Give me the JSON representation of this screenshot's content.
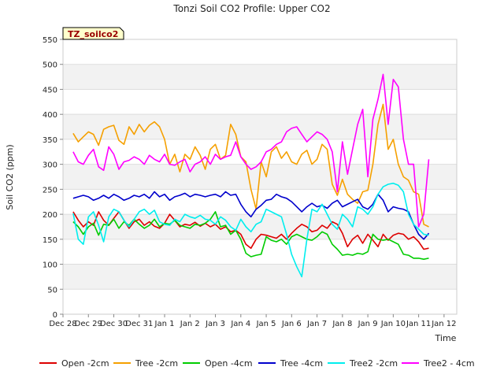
{
  "chart_data": {
    "type": "line",
    "title": "Tonzi Soil CO2 Profile: Upper CO2",
    "xlabel": "Time",
    "ylabel": "Soil CO2 (ppm)",
    "badge": "TZ_soilco2",
    "ylim": [
      0,
      550
    ],
    "yticks": [
      0,
      50,
      100,
      150,
      200,
      250,
      300,
      350,
      400,
      450,
      500,
      550
    ],
    "xlim": [
      0,
      15.5
    ],
    "xticks": [
      {
        "pos": 0,
        "label": "Dec 28"
      },
      {
        "pos": 1,
        "label": "Dec 29"
      },
      {
        "pos": 2,
        "label": "Dec 30"
      },
      {
        "pos": 3,
        "label": "Dec 31"
      },
      {
        "pos": 4,
        "label": "Jan 1"
      },
      {
        "pos": 5,
        "label": "Jan 2"
      },
      {
        "pos": 6,
        "label": "Jan 3"
      },
      {
        "pos": 7,
        "label": "Jan 4"
      },
      {
        "pos": 8,
        "label": "Jan 5"
      },
      {
        "pos": 9,
        "label": "Jan 6"
      },
      {
        "pos": 10,
        "label": "Jan 7"
      },
      {
        "pos": 11,
        "label": "Jan 8"
      },
      {
        "pos": 12,
        "label": "Jan 9"
      },
      {
        "pos": 13,
        "label": "Jan 10"
      },
      {
        "pos": 14,
        "label": "Jan 11"
      },
      {
        "pos": 15,
        "label": "Jan 12"
      }
    ],
    "x": [
      0.4,
      0.6,
      0.8,
      1.0,
      1.2,
      1.4,
      1.6,
      1.8,
      2.0,
      2.2,
      2.4,
      2.6,
      2.8,
      3.0,
      3.2,
      3.4,
      3.6,
      3.8,
      4.0,
      4.2,
      4.4,
      4.6,
      4.8,
      5.0,
      5.2,
      5.4,
      5.6,
      5.8,
      6.0,
      6.2,
      6.4,
      6.6,
      6.8,
      7.0,
      7.2,
      7.4,
      7.6,
      7.8,
      8.0,
      8.2,
      8.4,
      8.6,
      8.8,
      9.0,
      9.2,
      9.4,
      9.6,
      9.8,
      10.0,
      10.2,
      10.4,
      10.6,
      10.8,
      11.0,
      11.2,
      11.4,
      11.6,
      11.8,
      12.0,
      12.2,
      12.4,
      12.6,
      12.8,
      13.0,
      13.2,
      13.4,
      13.6,
      13.8,
      14.0,
      14.2,
      14.4
    ],
    "series": [
      {
        "name": "Open -2cm",
        "color": "#dd0000",
        "values": [
          205,
          188,
          175,
          185,
          178,
          205,
          188,
          178,
          192,
          205,
          188,
          172,
          185,
          190,
          178,
          185,
          176,
          172,
          182,
          200,
          188,
          175,
          180,
          178,
          184,
          176,
          182,
          175,
          180,
          170,
          175,
          165,
          168,
          160,
          140,
          132,
          150,
          160,
          158,
          155,
          152,
          160,
          150,
          162,
          172,
          180,
          175,
          165,
          168,
          178,
          172,
          185,
          180,
          162,
          135,
          150,
          158,
          142,
          160,
          148,
          135,
          160,
          148,
          158,
          162,
          160,
          150,
          155,
          145,
          130,
          132
        ]
      },
      {
        "name": "Tree -2cm",
        "color": "#f5a000",
        "values": [
          362,
          345,
          355,
          365,
          360,
          338,
          370,
          375,
          378,
          348,
          340,
          375,
          360,
          380,
          365,
          378,
          385,
          375,
          350,
          300,
          320,
          285,
          320,
          310,
          335,
          318,
          290,
          330,
          340,
          310,
          318,
          380,
          360,
          315,
          305,
          250,
          210,
          305,
          275,
          325,
          335,
          312,
          325,
          305,
          300,
          320,
          328,
          300,
          310,
          340,
          330,
          260,
          238,
          270,
          240,
          230,
          222,
          245,
          248,
          300,
          380,
          420,
          330,
          350,
          300,
          275,
          268,
          245,
          240,
          180,
          175
        ]
      },
      {
        "name": "Open -4cm",
        "color": "#00cc00",
        "values": [
          185,
          175,
          160,
          175,
          182,
          158,
          180,
          178,
          190,
          172,
          185,
          178,
          190,
          180,
          172,
          178,
          190,
          175,
          182,
          180,
          188,
          178,
          175,
          172,
          180,
          178,
          182,
          190,
          205,
          175,
          178,
          160,
          168,
          150,
          122,
          115,
          118,
          120,
          155,
          148,
          145,
          150,
          140,
          155,
          160,
          155,
          150,
          148,
          155,
          165,
          160,
          140,
          130,
          118,
          120,
          118,
          122,
          120,
          125,
          160,
          150,
          148,
          150,
          145,
          140,
          120,
          118,
          112,
          112,
          110,
          112
        ]
      },
      {
        "name": "Tree -4cm",
        "color": "#0000cc",
        "values": [
          232,
          235,
          238,
          235,
          228,
          232,
          238,
          232,
          240,
          235,
          228,
          232,
          238,
          235,
          240,
          232,
          245,
          235,
          240,
          228,
          235,
          238,
          242,
          235,
          240,
          238,
          235,
          238,
          240,
          235,
          245,
          238,
          240,
          220,
          205,
          195,
          210,
          218,
          228,
          230,
          240,
          235,
          232,
          225,
          215,
          205,
          215,
          222,
          215,
          218,
          212,
          222,
          228,
          215,
          220,
          225,
          230,
          215,
          210,
          220,
          240,
          228,
          205,
          215,
          212,
          210,
          205,
          180,
          160,
          150,
          162
        ]
      },
      {
        "name": "Tree2 -2cm",
        "color": "#00eeee",
        "values": [
          202,
          150,
          140,
          195,
          205,
          178,
          145,
          195,
          210,
          205,
          188,
          175,
          190,
          205,
          210,
          200,
          208,
          185,
          180,
          178,
          190,
          185,
          200,
          195,
          192,
          198,
          190,
          188,
          180,
          195,
          188,
          175,
          168,
          190,
          175,
          165,
          180,
          185,
          210,
          205,
          200,
          195,
          160,
          120,
          95,
          75,
          150,
          210,
          205,
          220,
          200,
          180,
          170,
          200,
          190,
          175,
          215,
          210,
          200,
          215,
          240,
          255,
          260,
          262,
          258,
          245,
          200,
          180,
          170,
          160,
          158
        ]
      },
      {
        "name": "Tree2 - 4cm",
        "color": "#ff00ff",
        "values": [
          325,
          305,
          300,
          318,
          330,
          295,
          288,
          335,
          320,
          290,
          305,
          308,
          315,
          310,
          300,
          318,
          310,
          305,
          320,
          300,
          298,
          305,
          310,
          285,
          300,
          305,
          315,
          300,
          320,
          310,
          315,
          318,
          345,
          315,
          300,
          290,
          295,
          305,
          325,
          330,
          340,
          345,
          365,
          372,
          375,
          360,
          345,
          355,
          365,
          360,
          350,
          325,
          245,
          345,
          280,
          330,
          380,
          410,
          275,
          390,
          430,
          480,
          380,
          470,
          455,
          350,
          300,
          300,
          175,
          200,
          310
        ]
      }
    ],
    "grid": true,
    "legend": "bottom"
  }
}
